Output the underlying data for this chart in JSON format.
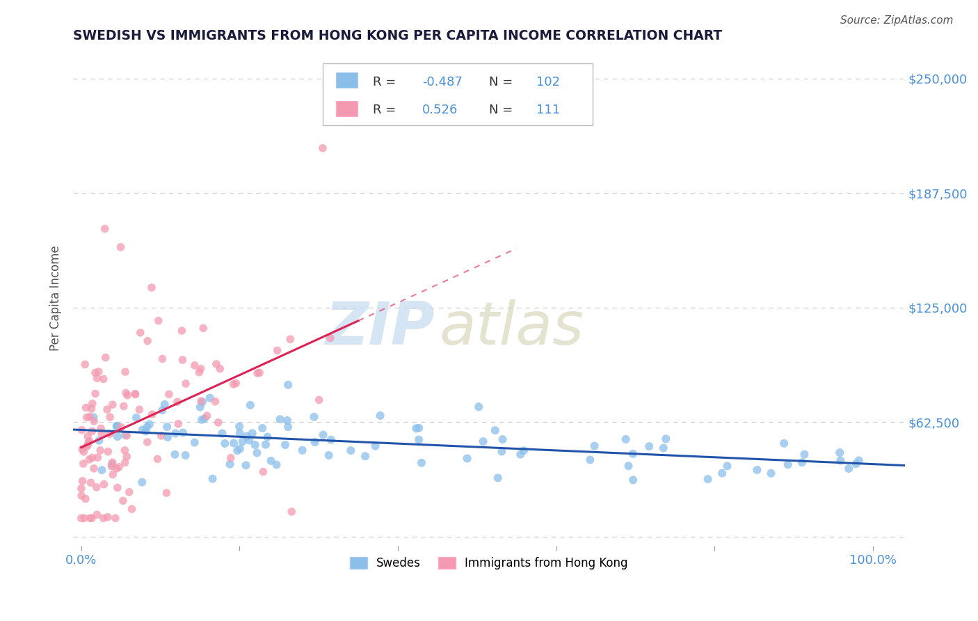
{
  "title": "SWEDISH VS IMMIGRANTS FROM HONG KONG PER CAPITA INCOME CORRELATION CHART",
  "source": "Source: ZipAtlas.com",
  "ylabel": "Per Capita Income",
  "x_ticks": [
    0.0,
    0.2,
    0.4,
    0.6,
    0.8,
    1.0
  ],
  "y_ticks": [
    0,
    62500,
    125000,
    187500,
    250000
  ],
  "y_tick_labels": [
    "",
    "$62,500",
    "$125,000",
    "$187,500",
    "$250,000"
  ],
  "ylim": [
    -5000,
    265000
  ],
  "xlim": [
    -0.01,
    1.04
  ],
  "blue_R": -0.487,
  "blue_N": 102,
  "pink_R": 0.526,
  "pink_N": 111,
  "blue_color": "#8bbfea",
  "pink_color": "#f49ab0",
  "blue_line_color": "#2255aa",
  "pink_line_color": "#dd2255",
  "legend_blue_label": "Swedes",
  "legend_pink_label": "Immigrants from Hong Kong",
  "watermark_zip": "ZIP",
  "watermark_atlas": "atlas",
  "background_color": "#ffffff",
  "grid_color": "#c8c8c8",
  "title_color": "#1a1a3a",
  "tick_label_color": "#4a90d9",
  "ylabel_color": "#555555",
  "legend_R_color": "#4a90d9",
  "legend_N_color": "#4a90d9"
}
